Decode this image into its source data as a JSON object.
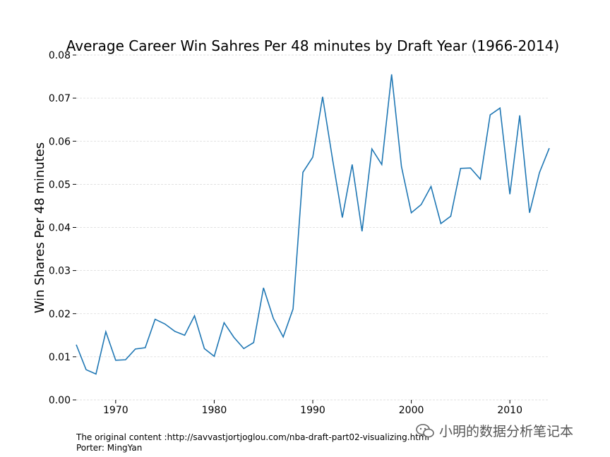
{
  "chart_data": {
    "type": "line",
    "title": "Average Career Win Sahres Per 48 minutes by Draft Year (1966-2014)",
    "xlabel": "",
    "ylabel": "Win Shares Per 48 minutes",
    "xlim": [
      1966,
      2014
    ],
    "ylim": [
      0.0,
      0.08
    ],
    "x_ticks": [
      1970,
      1980,
      1990,
      2000,
      2010
    ],
    "y_ticks": [
      "0.00",
      "0.01",
      "0.02",
      "0.03",
      "0.04",
      "0.05",
      "0.06",
      "0.07",
      "0.08"
    ],
    "grid": "horizontal dashed",
    "color": "#1f77b4",
    "series": [
      {
        "name": "Win Shares Per 48 minutes",
        "x": [
          1966,
          1967,
          1968,
          1969,
          1970,
          1971,
          1972,
          1973,
          1974,
          1975,
          1976,
          1977,
          1978,
          1979,
          1980,
          1981,
          1982,
          1983,
          1984,
          1985,
          1986,
          1987,
          1988,
          1989,
          1990,
          1991,
          1992,
          1993,
          1994,
          1995,
          1996,
          1997,
          1998,
          1999,
          2000,
          2001,
          2002,
          2003,
          2004,
          2005,
          2006,
          2007,
          2008,
          2009,
          2010,
          2011,
          2012,
          2013,
          2014
        ],
        "values": [
          0.0128,
          0.007,
          0.006,
          0.0158,
          0.0092,
          0.0093,
          0.0118,
          0.0121,
          0.0187,
          0.0176,
          0.0159,
          0.015,
          0.0195,
          0.0119,
          0.0101,
          0.0179,
          0.0145,
          0.0119,
          0.0133,
          0.026,
          0.0189,
          0.0146,
          0.0211,
          0.0528,
          0.0563,
          0.0703,
          0.0559,
          0.0423,
          0.0546,
          0.0391,
          0.0582,
          0.0546,
          0.0755,
          0.0541,
          0.0434,
          0.0453,
          0.0495,
          0.0409,
          0.0426,
          0.0537,
          0.0538,
          0.0512,
          0.0661,
          0.0677,
          0.0477,
          0.066,
          0.0434,
          0.0527,
          0.0584
        ]
      }
    ]
  },
  "footer": {
    "source": "The original content :http://savvastjortjoglou.com/nba-draft-part02-visualizing.html",
    "porter": "Porter: MingYan"
  },
  "watermark": {
    "text": "小明的数据分析笔记本",
    "icon": "wechat-icon"
  }
}
